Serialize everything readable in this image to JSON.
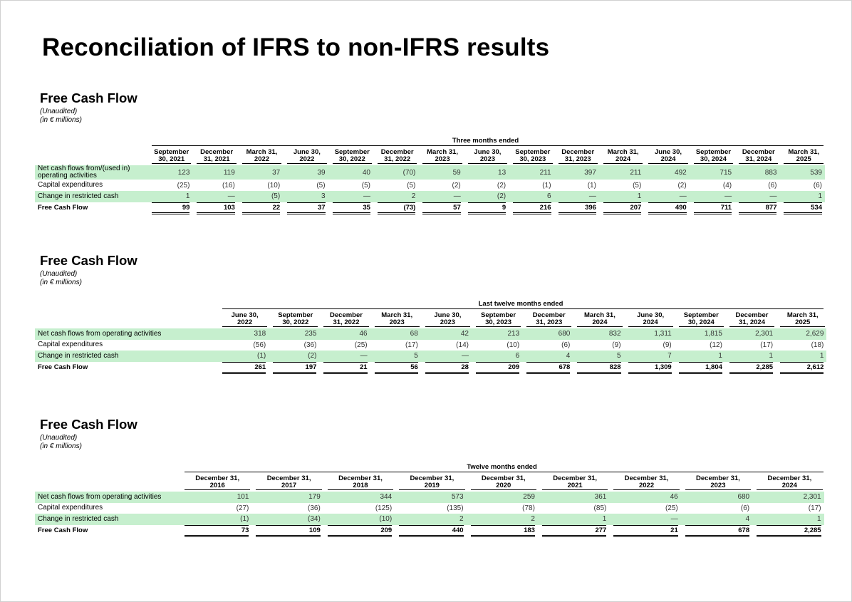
{
  "title": "Reconciliation of IFRS to non-IFRS results",
  "sections": [
    {
      "title": "Free Cash Flow",
      "note1": "(Unaudited)",
      "note2": "(in € millions)",
      "period_title": "Three months ended",
      "columns": [
        [
          "September",
          "30, 2021"
        ],
        [
          "December",
          "31, 2021"
        ],
        [
          "March 31,",
          "2022"
        ],
        [
          "June 30,",
          "2022"
        ],
        [
          "September",
          "30, 2022"
        ],
        [
          "December",
          "31, 2022"
        ],
        [
          "March 31,",
          "2023"
        ],
        [
          "June 30,",
          "2023"
        ],
        [
          "September",
          "30, 2023"
        ],
        [
          "December",
          "31, 2023"
        ],
        [
          "March 31,",
          "2024"
        ],
        [
          "June 30,",
          "2024"
        ],
        [
          "September",
          "30, 2024"
        ],
        [
          "December",
          "31, 2024"
        ],
        [
          "March 31,",
          "2025"
        ]
      ],
      "rows": [
        {
          "label": "Net cash flows from/(used in) operating activities",
          "values": [
            "123",
            "119",
            "37",
            "39",
            "40",
            "(70)",
            "59",
            "13",
            "211",
            "397",
            "211",
            "492",
            "715",
            "883",
            "539"
          ]
        },
        {
          "label": "Capital expenditures",
          "values": [
            "(25)",
            "(16)",
            "(10)",
            "(5)",
            "(5)",
            "(5)",
            "(2)",
            "(2)",
            "(1)",
            "(1)",
            "(5)",
            "(2)",
            "(4)",
            "(6)",
            "(6)"
          ]
        },
        {
          "label": "Change in restricted cash",
          "values": [
            "1",
            "—",
            "(5)",
            "3",
            "—",
            "2",
            "—",
            "(2)",
            "6",
            "—",
            "1",
            "—",
            "—",
            "—",
            "1"
          ]
        },
        {
          "label": "Free Cash Flow",
          "values": [
            "99",
            "103",
            "22",
            "37",
            "35",
            "(73)",
            "57",
            "9",
            "216",
            "396",
            "207",
            "490",
            "711",
            "877",
            "534"
          ]
        }
      ]
    },
    {
      "title": "Free Cash Flow",
      "note1": "(Unaudited)",
      "note2": "(in € millions)",
      "period_title": "Last twelve months ended",
      "columns": [
        [
          "June 30,",
          "2022"
        ],
        [
          "September",
          "30, 2022"
        ],
        [
          "December",
          "31, 2022"
        ],
        [
          "March 31,",
          "2023"
        ],
        [
          "June 30,",
          "2023"
        ],
        [
          "September",
          "30, 2023"
        ],
        [
          "December",
          "31, 2023"
        ],
        [
          "March 31,",
          "2024"
        ],
        [
          "June 30,",
          "2024"
        ],
        [
          "September",
          "30, 2024"
        ],
        [
          "December",
          "31, 2024"
        ],
        [
          "March 31,",
          "2025"
        ]
      ],
      "rows": [
        {
          "label": "Net cash flows from operating activities",
          "values": [
            "318",
            "235",
            "46",
            "68",
            "42",
            "213",
            "680",
            "832",
            "1,311",
            "1,815",
            "2,301",
            "2,629"
          ]
        },
        {
          "label": "Capital expenditures",
          "values": [
            "(56)",
            "(36)",
            "(25)",
            "(17)",
            "(14)",
            "(10)",
            "(6)",
            "(9)",
            "(9)",
            "(12)",
            "(17)",
            "(18)"
          ]
        },
        {
          "label": "Change in restricted cash",
          "values": [
            "(1)",
            "(2)",
            "—",
            "5",
            "—",
            "6",
            "4",
            "5",
            "7",
            "1",
            "1",
            "1"
          ]
        },
        {
          "label": "Free Cash Flow",
          "values": [
            "261",
            "197",
            "21",
            "56",
            "28",
            "209",
            "678",
            "828",
            "1,309",
            "1,804",
            "2,285",
            "2,612"
          ]
        }
      ]
    },
    {
      "title": "Free Cash Flow",
      "note1": "(Unaudited)",
      "note2": "(in € millions)",
      "period_title": "Twelve months ended",
      "columns": [
        [
          "December 31,",
          "2016"
        ],
        [
          "December 31,",
          "2017"
        ],
        [
          "December 31,",
          "2018"
        ],
        [
          "December 31,",
          "2019"
        ],
        [
          "December 31,",
          "2020"
        ],
        [
          "December 31,",
          "2021"
        ],
        [
          "December 31,",
          "2022"
        ],
        [
          "December 31,",
          "2023"
        ],
        [
          "December 31,",
          "2024"
        ]
      ],
      "rows": [
        {
          "label": "Net cash flows from operating activities",
          "values": [
            "101",
            "179",
            "344",
            "573",
            "259",
            "361",
            "46",
            "680",
            "2,301"
          ]
        },
        {
          "label": "Capital expenditures",
          "values": [
            "(27)",
            "(36)",
            "(125)",
            "(135)",
            "(78)",
            "(85)",
            "(25)",
            "(6)",
            "(17)"
          ]
        },
        {
          "label": "Change in restricted cash",
          "values": [
            "(1)",
            "(34)",
            "(10)",
            "2",
            "2",
            "1",
            "—",
            "4",
            "1"
          ]
        },
        {
          "label": "Free Cash Flow",
          "values": [
            "73",
            "109",
            "209",
            "440",
            "183",
            "277",
            "21",
            "678",
            "2,285"
          ]
        }
      ]
    }
  ],
  "colors": {
    "row_highlight": "#c6efce"
  }
}
